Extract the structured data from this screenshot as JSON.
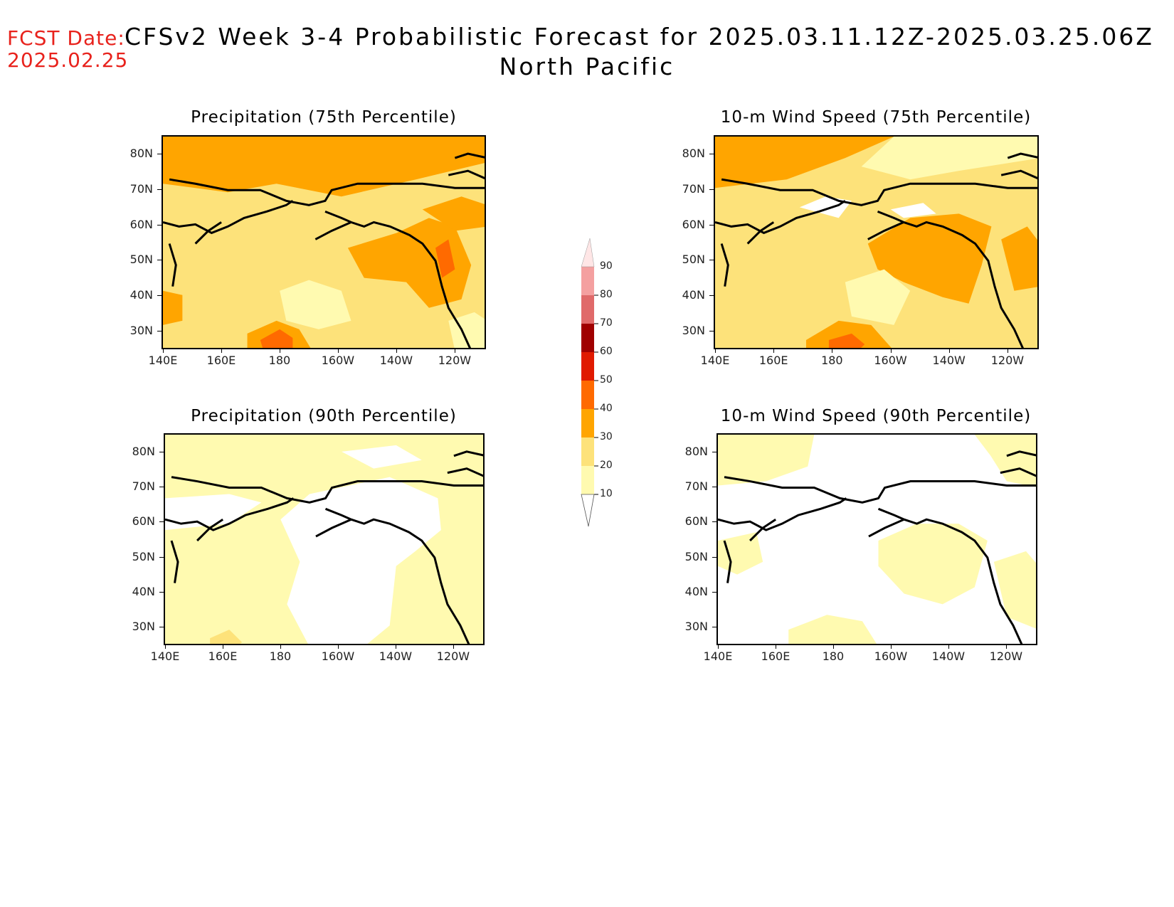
{
  "header": {
    "fcst_label": "FCST Date:",
    "fcst_date": "2025.02.25",
    "title": "CFSv2 Week 3-4 Probabilistic Forecast for 2025.03.11.12Z-2025.03.25.06Z",
    "subtitle": "North Pacific"
  },
  "axes": {
    "lat_ticks": [
      "80N",
      "70N",
      "60N",
      "50N",
      "40N",
      "30N"
    ],
    "lon_ticks": [
      "140E",
      "160E",
      "180",
      "160W",
      "140W",
      "120W"
    ]
  },
  "panels": [
    {
      "id": "precip75",
      "title": "Precipitation (75th Percentile)"
    },
    {
      "id": "wind75",
      "title": "10-m Wind Speed (75th Percentile)"
    },
    {
      "id": "precip90",
      "title": "Precipitation (90th Percentile)"
    },
    {
      "id": "wind90",
      "title": "10-m Wind Speed (90th Percentile)"
    }
  ],
  "colorbar": {
    "levels": [
      "10",
      "20",
      "30",
      "40",
      "50",
      "60",
      "70",
      "80",
      "90"
    ],
    "colors": [
      "#fffab0",
      "#fde27a",
      "#ffa500",
      "#ff6a00",
      "#e01a00",
      "#a00000",
      "#e06a6a",
      "#f4a0a0",
      "#ffe6e6"
    ]
  }
}
